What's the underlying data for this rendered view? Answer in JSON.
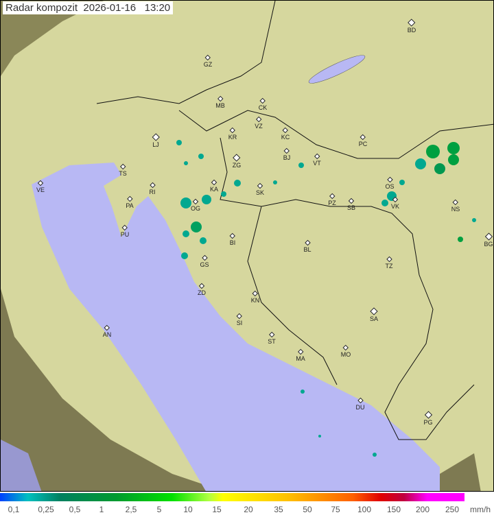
{
  "title": "Radar kompozit  2026-01-16   13:20",
  "cities": [
    "GZ",
    "MB",
    "CK",
    "VZ",
    "KR",
    "KC",
    "PC",
    "BD",
    "LJ",
    "ZG",
    "BJ",
    "VT",
    "TS",
    "VE",
    "RI",
    "KA",
    "SK",
    "OS",
    "PA",
    "OG",
    "PZ",
    "SB",
    "VK",
    "NS",
    "PU",
    "BI",
    "BL",
    "BG",
    "GS",
    "TZ",
    "ZD",
    "KN",
    "SA",
    "SI",
    "AN",
    "ST",
    "MA",
    "MO",
    "DU",
    "PG"
  ],
  "legend": {
    "labels": [
      "0,1",
      "0,25",
      "0,5",
      "1",
      "2,5",
      "5",
      "10",
      "15",
      "20",
      "35",
      "50",
      "75",
      "100",
      "150",
      "200",
      "250"
    ],
    "unit": "mm/h"
  },
  "colors": {
    "sea": "#b8b8f4",
    "land": "#d9d9a0",
    "outside": "#7e7a52",
    "rain_light": "#00a0c0",
    "rain_moderate": "#00a040"
  }
}
